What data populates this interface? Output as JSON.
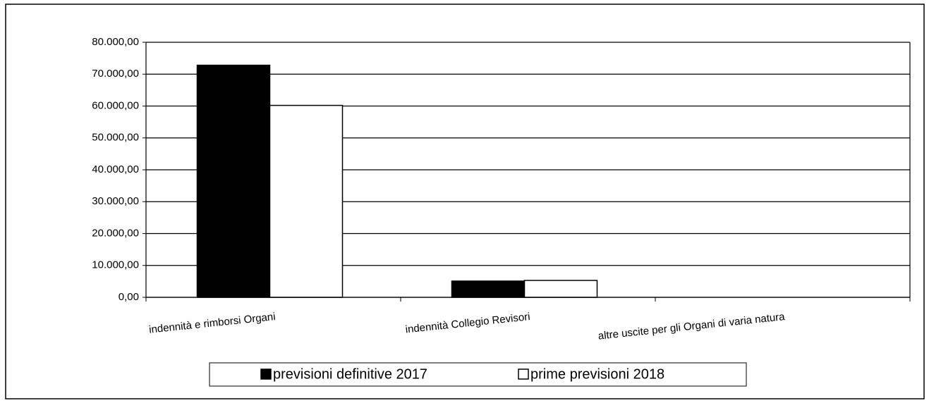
{
  "chart_data": {
    "type": "bar",
    "categories": [
      "indennità e rimborsi Organi",
      "indennità Collegio Revisori",
      "altre uscite per gli Organi di varia natura"
    ],
    "series": [
      {
        "name": "previsioni definitive 2017",
        "color": "#000000",
        "values": [
          72800,
          5100,
          0
        ]
      },
      {
        "name": "prime previsioni 2018",
        "color": "#ffffff",
        "values": [
          60200,
          5300,
          0
        ]
      }
    ],
    "ylim": [
      0,
      80000
    ],
    "yticks": [
      {
        "value": 0,
        "label": "0,00"
      },
      {
        "value": 10000,
        "label": "10.000,00"
      },
      {
        "value": 20000,
        "label": "20.000,00"
      },
      {
        "value": 30000,
        "label": "30.000,00"
      },
      {
        "value": 40000,
        "label": "40.000,00"
      },
      {
        "value": 50000,
        "label": "50.000,00"
      },
      {
        "value": 60000,
        "label": "60.000,00"
      },
      {
        "value": 70000,
        "label": "70.000,00"
      },
      {
        "value": 80000,
        "label": "80.000,00"
      }
    ],
    "grid": true,
    "legend": "bottom"
  }
}
